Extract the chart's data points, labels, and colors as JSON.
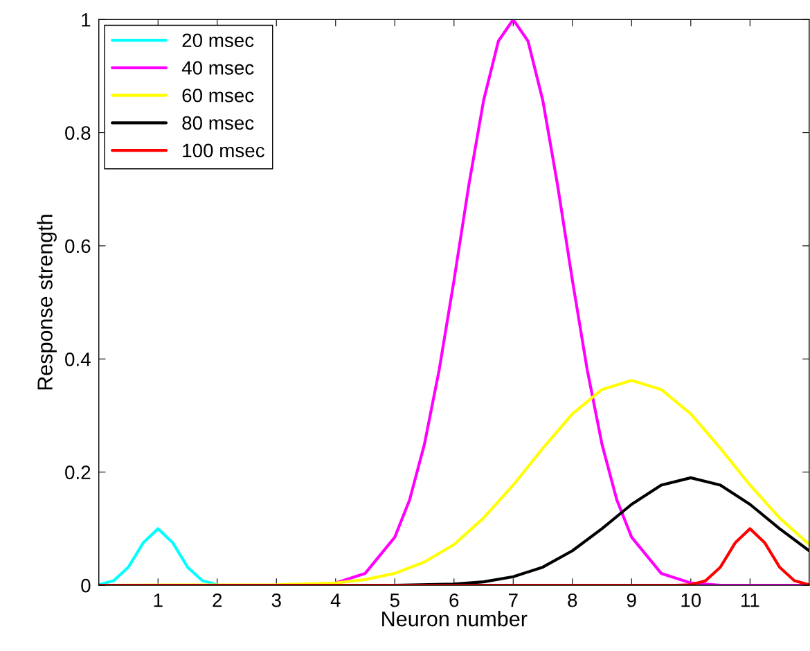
{
  "chart_data": {
    "type": "line",
    "xlabel": "Neuron number",
    "ylabel": "Response strength",
    "xlim": [
      0,
      12
    ],
    "ylim": [
      0,
      1
    ],
    "xticks": [
      1,
      2,
      3,
      4,
      5,
      6,
      7,
      8,
      9,
      10,
      11
    ],
    "yticks": [
      0,
      0.2,
      0.4,
      0.6,
      0.8,
      1
    ],
    "legend": "top left",
    "grid": false,
    "marker": "none",
    "line_style": "solid",
    "series": [
      {
        "name": "20 msec",
        "color": "#00ffff",
        "x": [
          0,
          0.25,
          0.5,
          0.75,
          1,
          1.25,
          1.5,
          1.75,
          2
        ],
        "values": [
          0.001,
          0.008,
          0.032,
          0.075,
          0.1,
          0.075,
          0.032,
          0.008,
          0.001
        ]
      },
      {
        "name": "40 msec",
        "color": "#ff00ff",
        "x": [
          0,
          3.5,
          4,
          4.5,
          5,
          5.25,
          5.5,
          5.75,
          6,
          6.25,
          6.5,
          6.75,
          7,
          7.25,
          7.5,
          7.75,
          8,
          8.25,
          8.5,
          8.75,
          9,
          9.5,
          10,
          10.5,
          12
        ],
        "values": [
          0,
          0,
          0.004,
          0.021,
          0.085,
          0.151,
          0.249,
          0.381,
          0.539,
          0.707,
          0.857,
          0.962,
          1,
          0.962,
          0.857,
          0.707,
          0.539,
          0.381,
          0.249,
          0.151,
          0.085,
          0.021,
          0.004,
          0,
          0
        ]
      },
      {
        "name": "60 msec",
        "color": "#ffff00",
        "x": [
          0,
          3,
          4,
          4.5,
          5,
          5.5,
          6,
          6.5,
          7,
          7.5,
          8,
          8.5,
          9,
          9.5,
          10,
          10.5,
          11,
          11.5,
          12
        ],
        "values": [
          0,
          0.001,
          0.004,
          0.01,
          0.021,
          0.041,
          0.072,
          0.119,
          0.177,
          0.242,
          0.303,
          0.346,
          0.362,
          0.346,
          0.303,
          0.242,
          0.177,
          0.119,
          0.072
        ]
      },
      {
        "name": "80 msec",
        "color": "#000000",
        "x": [
          0,
          5,
          6,
          6.5,
          7,
          7.5,
          8,
          8.5,
          9,
          9.5,
          10,
          10.5,
          11,
          11.5,
          12
        ],
        "values": [
          0,
          0,
          0.002,
          0.006,
          0.015,
          0.032,
          0.061,
          0.1,
          0.143,
          0.177,
          0.19,
          0.177,
          0.143,
          0.1,
          0.061
        ]
      },
      {
        "name": "100 msec",
        "color": "#ff0000",
        "x": [
          0,
          9.75,
          10,
          10.25,
          10.5,
          10.75,
          11,
          11.25,
          11.5,
          11.75,
          12
        ],
        "values": [
          0,
          0,
          0.001,
          0.008,
          0.032,
          0.075,
          0.1,
          0.075,
          0.032,
          0.008,
          0.001
        ]
      }
    ]
  }
}
